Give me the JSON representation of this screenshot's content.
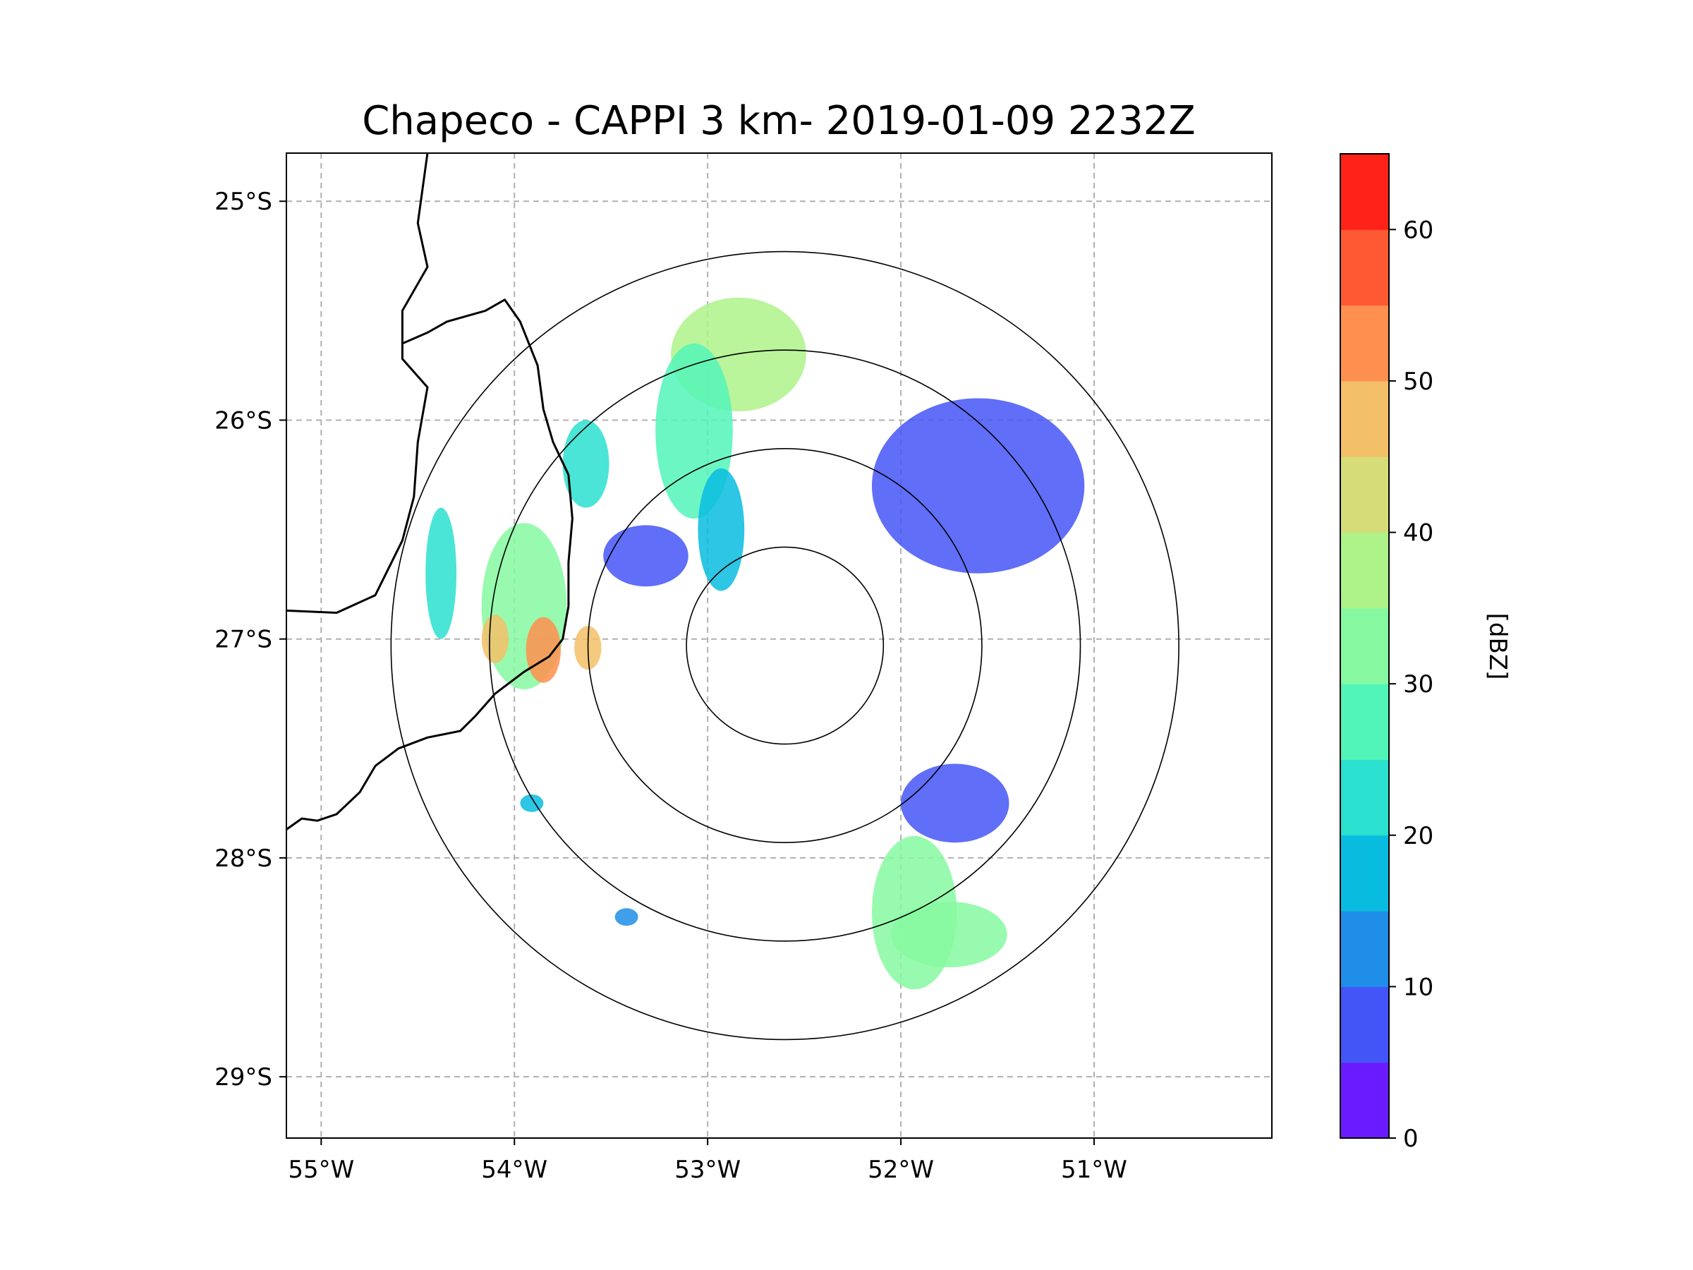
{
  "chart_data": {
    "type": "heatmap",
    "subtype": "radar-ppi-map",
    "title": "Chapeco - CAPPI 3 km- 2019-01-09 2232Z",
    "radar_site": {
      "name": "Chapeco",
      "lon": -52.6,
      "lat": -27.03
    },
    "range_rings_deg_lat": [
      0.45,
      0.9,
      1.35,
      1.8
    ],
    "x_axis": {
      "ticks": [
        -55,
        -54,
        -53,
        -52,
        -51
      ],
      "tick_labels": [
        "55°W",
        "54°W",
        "53°W",
        "52°W",
        "51°W"
      ],
      "lim": [
        -55.18,
        -50.08
      ]
    },
    "y_axis": {
      "ticks": [
        -25,
        -26,
        -27,
        -28,
        -29
      ],
      "tick_labels": [
        "25°S",
        "26°S",
        "27°S",
        "28°S",
        "29°S"
      ],
      "lim": [
        -29.28,
        -24.78
      ]
    },
    "gridlines": true,
    "colorbar": {
      "label": "[dBZ]",
      "levels": [
        0,
        5,
        10,
        15,
        20,
        25,
        30,
        35,
        40,
        45,
        50,
        55,
        60,
        65
      ],
      "ticks": [
        0,
        10,
        20,
        30,
        40,
        50,
        60
      ],
      "tick_labels": [
        "0",
        "10",
        "20",
        "30",
        "40",
        "50",
        "60"
      ],
      "colors": [
        "#6a1bff",
        "#4455f7",
        "#1f8ee8",
        "#08bce0",
        "#2ae0cf",
        "#52f5b8",
        "#86f9a0",
        "#aef28a",
        "#d6dd78",
        "#f3bf67",
        "#ff8f4e",
        "#ff5934",
        "#ff2219"
      ]
    },
    "echoes": [
      {
        "name": "north-cell",
        "lon": -52.84,
        "lat": -25.7,
        "rx": 0.35,
        "ry": 0.26,
        "dbz": 38
      },
      {
        "name": "north-band",
        "lon": -53.07,
        "lat": -26.05,
        "rx": 0.2,
        "ry": 0.4,
        "dbz": 25
      },
      {
        "name": "north-tail",
        "lon": -52.93,
        "lat": -26.5,
        "rx": 0.12,
        "ry": 0.28,
        "dbz": 18
      },
      {
        "name": "west-cluster",
        "lon": -53.95,
        "lat": -26.85,
        "rx": 0.22,
        "ry": 0.38,
        "dbz": 30
      },
      {
        "name": "west-core-1",
        "lon": -53.85,
        "lat": -27.05,
        "rx": 0.09,
        "ry": 0.15,
        "dbz": 52
      },
      {
        "name": "west-core-2",
        "lon": -54.1,
        "lat": -27.0,
        "rx": 0.07,
        "ry": 0.11,
        "dbz": 48
      },
      {
        "name": "west-core-3",
        "lon": -53.62,
        "lat": -27.04,
        "rx": 0.07,
        "ry": 0.1,
        "dbz": 46
      },
      {
        "name": "far-west",
        "lon": -54.38,
        "lat": -26.7,
        "rx": 0.08,
        "ry": 0.3,
        "dbz": 24
      },
      {
        "name": "nw-cell",
        "lon": -53.63,
        "lat": -26.2,
        "rx": 0.12,
        "ry": 0.2,
        "dbz": 20
      },
      {
        "name": "nw-mid",
        "lon": -53.32,
        "lat": -26.62,
        "rx": 0.22,
        "ry": 0.14,
        "dbz": 8
      },
      {
        "name": "south-band",
        "lon": -51.93,
        "lat": -28.25,
        "rx": 0.22,
        "ry": 0.35,
        "dbz": 33
      },
      {
        "name": "south-lobe",
        "lon": -51.75,
        "lat": -28.35,
        "rx": 0.3,
        "ry": 0.15,
        "dbz": 30
      },
      {
        "name": "se-stratiform",
        "lon": -51.72,
        "lat": -27.75,
        "rx": 0.28,
        "ry": 0.18,
        "dbz": 6
      },
      {
        "name": "ne-stratiform",
        "lon": -51.6,
        "lat": -26.3,
        "rx": 0.55,
        "ry": 0.4,
        "dbz": 5
      },
      {
        "name": "sw-speck-1",
        "lon": -53.91,
        "lat": -27.75,
        "rx": 0.06,
        "ry": 0.04,
        "dbz": 16
      },
      {
        "name": "sw-speck-2",
        "lon": -53.42,
        "lat": -28.27,
        "rx": 0.06,
        "ry": 0.04,
        "dbz": 14
      }
    ],
    "borders": [
      {
        "name": "ar-br-border",
        "points": [
          [
            -54.45,
            -24.78
          ],
          [
            -54.5,
            -25.1
          ],
          [
            -54.45,
            -25.3
          ],
          [
            -54.58,
            -25.5
          ],
          [
            -54.58,
            -25.72
          ],
          [
            -54.45,
            -25.85
          ],
          [
            -54.5,
            -26.1
          ],
          [
            -54.52,
            -26.35
          ],
          [
            -54.58,
            -26.55
          ],
          [
            -54.72,
            -26.8
          ],
          [
            -54.92,
            -26.88
          ],
          [
            -55.18,
            -26.87
          ]
        ]
      },
      {
        "name": "sc-pr-border",
        "points": [
          [
            -54.58,
            -25.65
          ],
          [
            -54.45,
            -25.6
          ],
          [
            -54.35,
            -25.55
          ],
          [
            -54.15,
            -25.5
          ],
          [
            -54.05,
            -25.45
          ],
          [
            -53.97,
            -25.55
          ],
          [
            -53.88,
            -25.75
          ],
          [
            -53.85,
            -25.95
          ],
          [
            -53.8,
            -26.1
          ],
          [
            -53.72,
            -26.25
          ],
          [
            -53.7,
            -26.45
          ],
          [
            -53.72,
            -26.65
          ],
          [
            -53.72,
            -26.85
          ],
          [
            -53.75,
            -27.0
          ],
          [
            -53.82,
            -27.08
          ],
          [
            -53.95,
            -27.15
          ],
          [
            -54.1,
            -27.25
          ],
          [
            -54.2,
            -27.35
          ],
          [
            -54.28,
            -27.42
          ],
          [
            -54.45,
            -27.45
          ],
          [
            -54.6,
            -27.5
          ],
          [
            -54.72,
            -27.58
          ],
          [
            -54.8,
            -27.7
          ],
          [
            -54.92,
            -27.8
          ],
          [
            -55.02,
            -27.83
          ],
          [
            -55.1,
            -27.82
          ],
          [
            -55.18,
            -27.87
          ]
        ]
      }
    ]
  }
}
